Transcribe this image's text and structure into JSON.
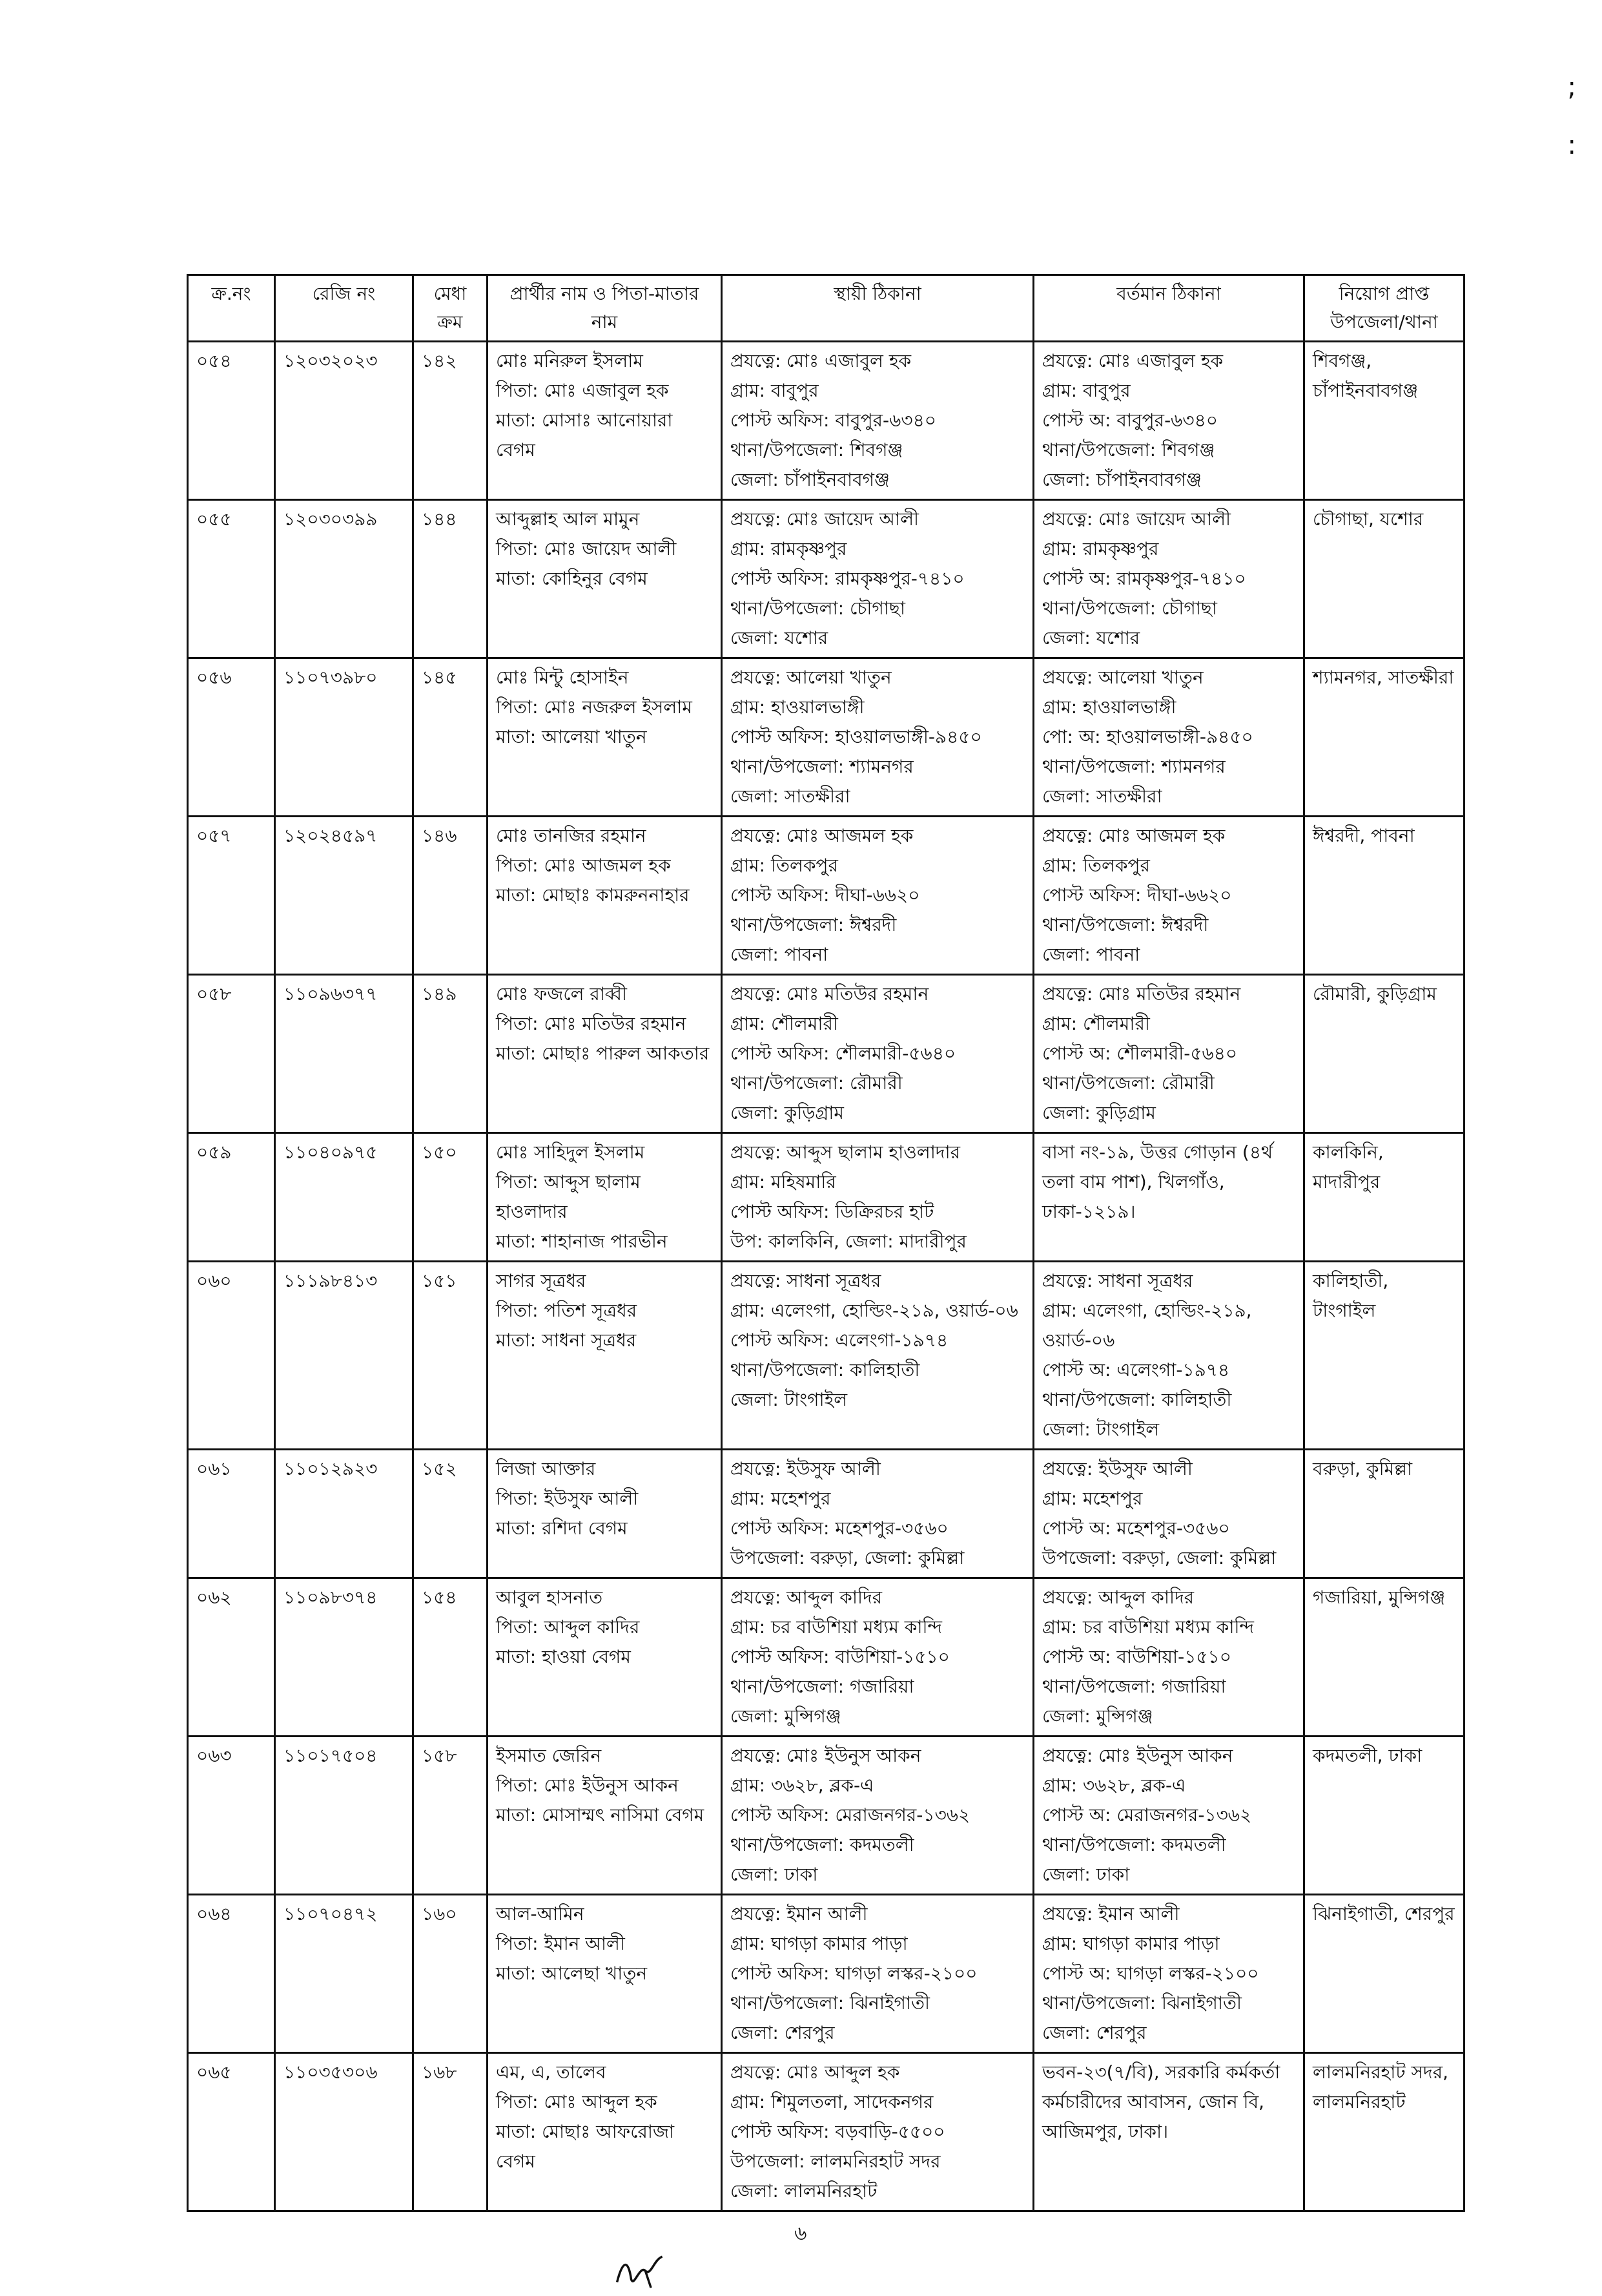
{
  "header": {
    "columns": [
      "ক্র.নং",
      "রেজি নং",
      "মেধা ক্রম",
      "প্রার্থীর নাম ও পিতা-মাতার নাম",
      "স্থায়ী ঠিকানা",
      "বর্তমান ঠিকানা",
      "নিয়োগ প্রাপ্ত উপজেলা/থানা"
    ]
  },
  "rows": [
    {
      "sl": "০৫৪",
      "reg": "১২০৩২০২৩",
      "merit": "১৪২",
      "name": [
        "মোঃ মনিরুল ইসলাম",
        "পিতা: মোঃ এজাবুল হক",
        "মাতা: মোসাঃ আনোয়ারা বেগম"
      ],
      "permanent": [
        "প্রযত্নে: মোঃ এজাবুল হক",
        "গ্রাম: বাবুপুর",
        "পোস্ট অফিস: বাবুপুর-৬৩৪০",
        "থানা/উপজেলা: শিবগঞ্জ",
        "জেলা: চাঁপাইনবাবগঞ্জ"
      ],
      "present": [
        "প্রযত্নে: মোঃ এজাবুল হক",
        "গ্রাম: বাবুপুর",
        "পোস্ট অ: বাবুপুর-৬৩৪০",
        "থানা/উপজেলা: শিবগঞ্জ",
        "জেলা: চাঁপাইনবাবগঞ্জ"
      ],
      "posting": "শিবগঞ্জ, চাঁপাইনবাবগঞ্জ"
    },
    {
      "sl": "০৫৫",
      "reg": "১২০৩০৩৯৯",
      "merit": "১৪৪",
      "name": [
        "আব্দুল্লাহ আল মামুন",
        "পিতা: মোঃ জায়েদ আলী",
        "মাতা: কোহিনুর বেগম"
      ],
      "permanent": [
        "প্রযত্নে: মোঃ জায়েদ আলী",
        "গ্রাম: রামকৃষ্ণপুর",
        "পোস্ট অফিস: রামকৃষ্ণপুর-৭৪১০",
        "থানা/উপজেলা: চৌগাছা",
        "জেলা: যশোর"
      ],
      "present": [
        "প্রযত্নে: মোঃ জায়েদ আলী",
        "গ্রাম: রামকৃষ্ণপুর",
        "পোস্ট অ: রামকৃষ্ণপুর-৭৪১০",
        "থানা/উপজেলা: চৌগাছা",
        "জেলা: যশোর"
      ],
      "posting": "চৌগাছা, যশোর"
    },
    {
      "sl": "০৫৬",
      "reg": "১১০৭৩৯৮০",
      "merit": "১৪৫",
      "name": [
        "মোঃ মিন্টু হোসাইন",
        "পিতা: মোঃ নজরুল ইসলাম",
        "মাতা: আলেয়া খাতুন"
      ],
      "permanent": [
        "প্রযত্নে: আলেয়া খাতুন",
        "গ্রাম: হাওয়ালভাঙ্গী",
        "পোস্ট অফিস: হাওয়ালভাঙ্গী-৯৪৫০",
        "থানা/উপজেলা: শ্যামনগর",
        "জেলা: সাতক্ষীরা"
      ],
      "present": [
        "প্রযত্নে: আলেয়া খাতুন",
        "গ্রাম: হাওয়ালভাঙ্গী",
        "পো: অ: হাওয়ালভাঙ্গী-৯৪৫০",
        "থানা/উপজেলা: শ্যামনগর",
        "জেলা: সাতক্ষীরা"
      ],
      "posting": "শ্যামনগর, সাতক্ষীরা"
    },
    {
      "sl": "০৫৭",
      "reg": "১২০২৪৫৯৭",
      "merit": "১৪৬",
      "name": [
        "মোঃ তানজির রহমান",
        "পিতা: মোঃ আজমল হক",
        "মাতা: মোছাঃ কামরুননাহার"
      ],
      "permanent": [
        "প্রযত্নে: মোঃ আজমল হক",
        "গ্রাম: তিলকপুর",
        "পোস্ট অফিস: দীঘা-৬৬২০",
        "থানা/উপজেলা: ঈশ্বরদী",
        "জেলা: পাবনা"
      ],
      "present": [
        "প্রযত্নে: মোঃ আজমল হক",
        "গ্রাম: তিলকপুর",
        "পোস্ট অফিস: দীঘা-৬৬২০",
        "থানা/উপজেলা: ঈশ্বরদী",
        "জেলা: পাবনা"
      ],
      "posting": "ঈশ্বরদী, পাবনা"
    },
    {
      "sl": "০৫৮",
      "reg": "১১০৯৬৩৭৭",
      "merit": "১৪৯",
      "name": [
        "মোঃ ফজলে রাব্বী",
        "পিতা: মোঃ মতিউর রহমান",
        "মাতা: মোছাঃ পারুল আকতার"
      ],
      "permanent": [
        "প্রযত্নে: মোঃ মতিউর রহমান",
        "গ্রাম: শৌলমারী",
        "পোস্ট অফিস: শৌলমারী-৫৬৪০",
        "থানা/উপজেলা: রৌমারী",
        "জেলা: কুড়িগ্রাম"
      ],
      "present": [
        "প্রযত্নে: মোঃ মতিউর রহমান",
        "গ্রাম: শৌলমারী",
        "পোস্ট অ: শৌলমারী-৫৬৪০",
        "থানা/উপজেলা: রৌমারী",
        "জেলা: কুড়িগ্রাম"
      ],
      "posting": "রৌমারী, কুড়িগ্রাম"
    },
    {
      "sl": "০৫৯",
      "reg": "১১০৪০৯৭৫",
      "merit": "১৫০",
      "name": [
        "মোঃ সাহিদুল ইসলাম",
        "পিতা: আব্দুস ছালাম হাওলাদার",
        "মাতা: শাহানাজ পারভীন"
      ],
      "permanent": [
        "প্রযত্নে: আব্দুস ছালাম হাওলাদার",
        "গ্রাম: মহিষমারি",
        "পোস্ট অফিস: ডিক্রিরচর হাট",
        "উপ: কালকিনি, জেলা: মাদারীপুর"
      ],
      "present": [
        "বাসা নং-১৯, উত্তর গোড়ান (৪র্থ তলা বাম পাশ), খিলগাঁও, ঢাকা-১২১৯।"
      ],
      "posting": "কালকিনি, মাদারীপুর"
    },
    {
      "sl": "০৬০",
      "reg": "১১১৯৮৪১৩",
      "merit": "১৫১",
      "name": [
        "সাগর সূত্রধর",
        "পিতা: পতিশ সূত্রধর",
        "মাতা: সাধনা সূত্রধর"
      ],
      "permanent": [
        "প্রযত্নে: সাধনা সূত্রধর",
        "গ্রাম: এলেংগা, হোল্ডিং-২১৯, ওয়ার্ড-০৬",
        "পোস্ট অফিস: এলেংগা-১৯৭৪",
        "থানা/উপজেলা: কালিহাতী",
        "জেলা: টাংগাইল"
      ],
      "present": [
        "প্রযত্নে: সাধনা সূত্রধর",
        "গ্রাম: এলেংগা, হোল্ডিং-২১৯, ওয়ার্ড-০৬",
        "পোস্ট অ: এলেংগা-১৯৭৪",
        "থানা/উপজেলা: কালিহাতী",
        "জেলা: টাংগাইল"
      ],
      "posting": "কালিহাতী, টাংগাইল"
    },
    {
      "sl": "০৬১",
      "reg": "১১০১২৯২৩",
      "merit": "১৫২",
      "name": [
        "লিজা আক্তার",
        "পিতা: ইউসুফ আলী",
        "মাতা: রশিদা বেগম"
      ],
      "permanent": [
        "প্রযত্নে: ইউসুফ আলী",
        "গ্রাম: মহেশপুর",
        "পোস্ট অফিস: মহেশপুর-৩৫৬০",
        "উপজেলা: বরুড়া, জেলা: কুমিল্লা"
      ],
      "present": [
        "প্রযত্নে: ইউসুফ আলী",
        "গ্রাম: মহেশপুর",
        "পোস্ট অ: মহেশপুর-৩৫৬০",
        "উপজেলা: বরুড়া, জেলা: কুমিল্লা"
      ],
      "posting": "বরুড়া, কুমিল্লা"
    },
    {
      "sl": "০৬২",
      "reg": "১১০৯৮৩৭৪",
      "merit": "১৫৪",
      "name": [
        "আবুল হাসনাত",
        "পিতা: আব্দুল কাদির",
        "মাতা: হাওয়া বেগম"
      ],
      "permanent": [
        "প্রযত্নে: আব্দুল কাদির",
        "গ্রাম: চর বাউশিয়া মধ্যম কান্দি",
        "পোস্ট অফিস: বাউশিয়া-১৫১০",
        "থানা/উপজেলা: গজারিয়া",
        "জেলা: মুন্সিগঞ্জ"
      ],
      "present": [
        "প্রযত্নে: আব্দুল কাদির",
        "গ্রাম: চর বাউশিয়া মধ্যম কান্দি",
        "পোস্ট অ: বাউশিয়া-১৫১০",
        "থানা/উপজেলা: গজারিয়া",
        "জেলা: মুন্সিগঞ্জ"
      ],
      "posting": "গজারিয়া, মুন্সিগঞ্জ"
    },
    {
      "sl": "০৬৩",
      "reg": "১১০১৭৫০৪",
      "merit": "১৫৮",
      "name": [
        "ইসমাত জেরিন",
        "পিতা: মোঃ ইউনুস আকন",
        "মাতা: মোসাম্মৎ নাসিমা বেগম"
      ],
      "permanent": [
        "প্রযত্নে: মোঃ ইউনুস আকন",
        "গ্রাম: ৩৬২৮, ব্লক-এ",
        "পোস্ট অফিস: মেরাজনগর-১৩৬২",
        "থানা/উপজেলা: কদমতলী",
        "জেলা: ঢাকা"
      ],
      "present": [
        "প্রযত্নে: মোঃ ইউনুস আকন",
        "গ্রাম: ৩৬২৮, ব্লক-এ",
        "পোস্ট অ: মেরাজনগর-১৩৬২",
        "থানা/উপজেলা: কদমতলী",
        "জেলা: ঢাকা"
      ],
      "posting": "কদমতলী, ঢাকা"
    },
    {
      "sl": "০৬৪",
      "reg": "১১০৭০৪৭২",
      "merit": "১৬০",
      "name": [
        "আল-আমিন",
        "পিতা: ইমান আলী",
        "মাতা: আলেছা খাতুন"
      ],
      "permanent": [
        "প্রযত্নে: ইমান আলী",
        "গ্রাম: ঘাগড়া কামার পাড়া",
        "পোস্ট অফিস: ঘাগড়া লস্কর-২১০০",
        "থানা/উপজেলা: ঝিনাইগাতী",
        "জেলা: শেরপুর"
      ],
      "present": [
        "প্রযত্নে: ইমান আলী",
        "গ্রাম: ঘাগড়া কামার পাড়া",
        "পোস্ট অ: ঘাগড়া লস্কর-২১০০",
        "থানা/উপজেলা: ঝিনাইগাতী",
        "জেলা: শেরপুর"
      ],
      "posting": "ঝিনাইগাতী, শেরপুর"
    },
    {
      "sl": "০৬৫",
      "reg": "১১০৩৫৩০৬",
      "merit": "১৬৮",
      "name": [
        "এম, এ, তালেব",
        "পিতা: মোঃ আব্দুল হক",
        "মাতা: মোছাঃ আফরোজা বেগম"
      ],
      "permanent": [
        "প্রযত্নে: মোঃ আব্দুল হক",
        "গ্রাম: শিমুলতলা, সাদেকনগর",
        "পোস্ট অফিস: বড়বাড়ি-৫৫০০",
        "উপজেলা: লালমনিরহাট সদর",
        "জেলা: লালমনিরহাট"
      ],
      "present": [
        "ভবন-২৩(৭/বি), সরকারি কর্মকর্তা কর্মচারীদের আবাসন, জোন বি, আজিমপুর, ঢাকা।"
      ],
      "posting": "লালমনিরহাট সদর, লালমনিরহাট"
    }
  ],
  "footer": {
    "page_number": "৬",
    "signature": "initials"
  },
  "corner_marks": ";\n:"
}
